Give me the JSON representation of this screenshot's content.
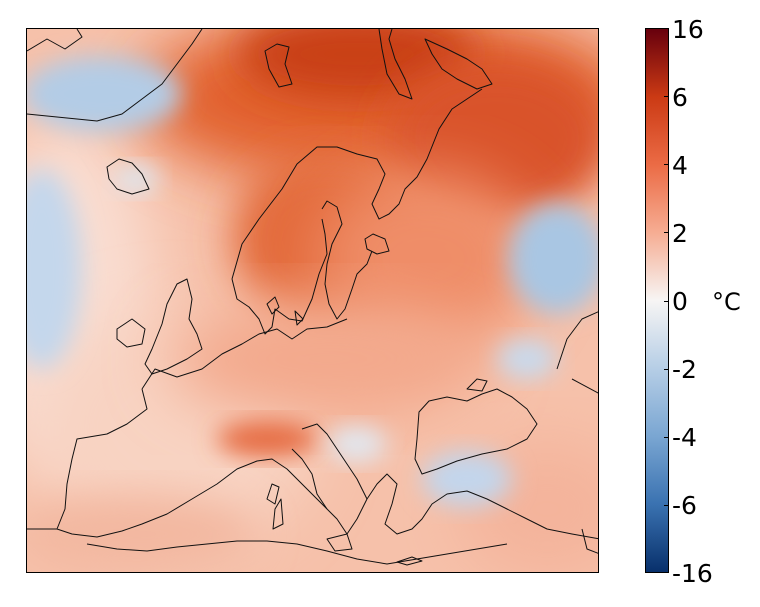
{
  "legend": {
    "unit": "°C",
    "ticks": [
      "16",
      "6",
      "4",
      "2",
      "0",
      "-2",
      "-4",
      "-6",
      "-16"
    ],
    "colors": [
      "#67000d",
      "#cb3a14",
      "#eb6b45",
      "#f6ad93",
      "#f7f5f4",
      "#b6cee6",
      "#7aa6d2",
      "#3a72b1",
      "#08306b"
    ]
  },
  "palette": {
    "warm_strong": "#d8501f",
    "warm_mid": "#ee8d6a",
    "warm_light": "#f8c8b3",
    "neutral": "#f7efec",
    "cool_light": "#c9dbee",
    "cool_mid": "#9dbfe0"
  }
}
